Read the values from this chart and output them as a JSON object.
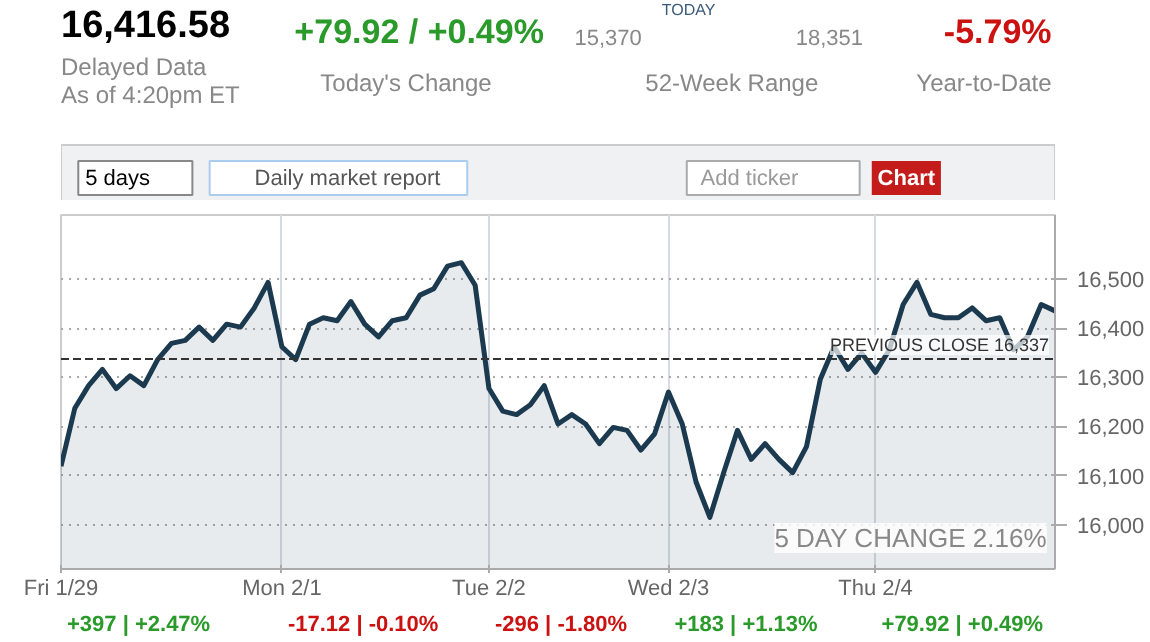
{
  "chart_data": {
    "type": "area",
    "title": "16,416.58",
    "annotations": [
      "Delayed Data",
      "As of 4:20pm ET",
      "+79.92 / +0.49%",
      "Today's Change",
      "15,370",
      "TODAY",
      "18,351",
      "52-Week Range",
      "-5.79%",
      "Year-to-Date",
      "5 days",
      "Daily market report",
      "Add ticker",
      "Chart",
      "5 DAY CHANGE 2.16%",
      "+397 | +2.47%",
      "-17.12 | -0.10%",
      "-296 | -1.80%",
      "+183 | +1.13%",
      "+79.92 | +0.49%"
    ],
    "categories": [
      "Fri 1/29",
      null,
      null,
      null,
      null,
      null,
      null,
      null,
      null,
      null,
      null,
      null,
      null,
      null,
      null,
      null,
      "Mon 2/1",
      null,
      null,
      null,
      null,
      null,
      null,
      null,
      null,
      null,
      null,
      null,
      null,
      null,
      null,
      "Tue 2/2",
      null,
      null,
      null,
      null,
      null,
      null,
      null,
      null,
      null,
      null,
      null,
      null,
      "Wed 2/3",
      null,
      null,
      null,
      null,
      null,
      null,
      null,
      null,
      null,
      null,
      null,
      null,
      null,
      null,
      "Thu 2/4",
      null,
      null,
      null,
      null,
      null,
      null,
      null,
      null,
      null,
      null,
      null,
      null,
      null
    ],
    "series": [
      {
        "color": "#1c3a4f",
        "values": [
          16119,
          16237,
          16283,
          16316,
          16277,
          16303,
          16283,
          16336,
          16369,
          16375,
          16402,
          16375,
          16408,
          16402,
          16441,
          16493,
          16362,
          16336,
          16408,
          16421,
          16415,
          16454,
          16408,
          16382,
          16415,
          16421,
          16467,
          16480,
          16526,
          16533,
          16487,
          16277,
          16231,
          16224,
          16244,
          16283,
          16205,
          16224,
          16205,
          16165,
          16198,
          16192,
          16152,
          16185,
          16270,
          16205,
          16087,
          16015,
          16106,
          16192,
          16133,
          16165,
          16133,
          16106,
          16159,
          16296,
          16362,
          16316,
          16349,
          16310,
          16356,
          16448,
          16493,
          16428,
          16421,
          16421,
          16441,
          16415,
          16421,
          16356,
          16382,
          16448,
          16435
        ]
      }
    ],
    "ylim": [
      15910,
      16630
    ],
    "yticks": [
      {
        "value": 16000,
        "label": "16,000"
      },
      {
        "value": 16100,
        "label": "16,100"
      },
      {
        "value": 16200,
        "label": "16,200"
      },
      {
        "value": 16300,
        "label": "16,300"
      },
      {
        "value": 16400,
        "label": "16,400"
      },
      {
        "value": 16500,
        "label": "16,500"
      }
    ],
    "ref_lines": [
      {
        "axis": "y",
        "value": 16337,
        "label": "PREVIOUS CLOSE 16,337",
        "color": "#333333",
        "line_style": "dashed"
      }
    ],
    "grid": true
  }
}
